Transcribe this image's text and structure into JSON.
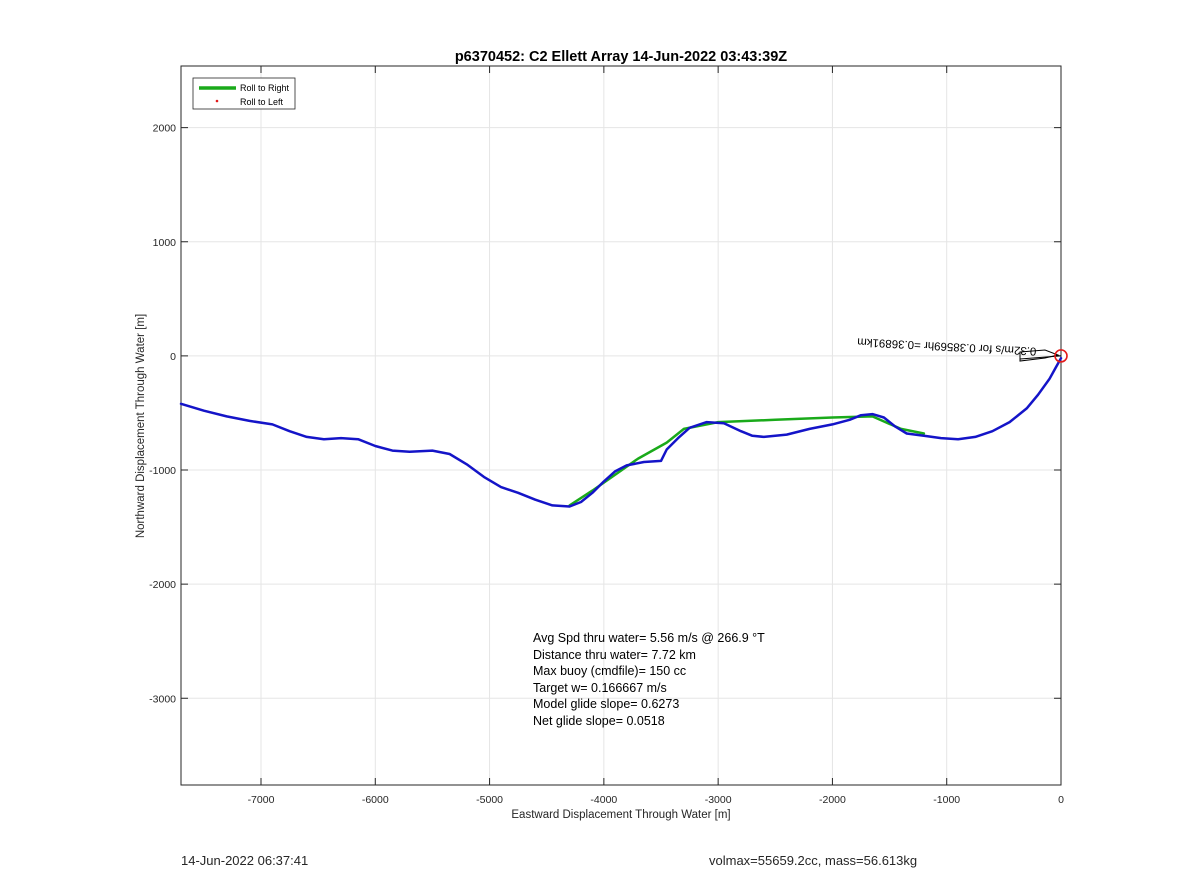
{
  "chart_data": {
    "type": "line",
    "title": "p6370452: C2 Ellett Array 14-Jun-2022 03:43:39Z",
    "xlabel": "Eastward Displacement Through Water [m]",
    "ylabel": "Northward Displacement Through Water [m]",
    "xlim": [
      -7700,
      0
    ],
    "ylim": [
      -3760,
      2540
    ],
    "xticks": [
      -7000,
      -6000,
      -5000,
      -4000,
      -3000,
      -2000,
      -1000,
      0
    ],
    "yticks": [
      -3000,
      -2000,
      -1000,
      0,
      1000,
      2000
    ],
    "grid": true,
    "legend_position": "top-left",
    "series": [
      {
        "name": "Roll to Right",
        "color": "#1aaa1a",
        "style": "line",
        "x": [
          -4300,
          -4100,
          -3900,
          -3700,
          -3450,
          -3300,
          -3000,
          -2500,
          -2000,
          -1650,
          -1400,
          -1200
        ],
        "y": [
          -1310,
          -1180,
          -1040,
          -900,
          -760,
          -640,
          -580,
          -560,
          -540,
          -530,
          -640,
          -680
        ]
      },
      {
        "name": "Roll to Left",
        "color": "#e31a1a",
        "style": "dots",
        "x": [],
        "y": []
      },
      {
        "name": "",
        "color": "#1414c8",
        "style": "line",
        "x": [
          -7700,
          -7500,
          -7300,
          -7100,
          -6900,
          -6750,
          -6600,
          -6450,
          -6300,
          -6150,
          -6000,
          -5850,
          -5700,
          -5500,
          -5350,
          -5200,
          -5050,
          -4900,
          -4750,
          -4600,
          -4450,
          -4300,
          -4200,
          -4100,
          -4000,
          -3900,
          -3800,
          -3650,
          -3500,
          -3450,
          -3350,
          -3250,
          -3100,
          -2950,
          -2800,
          -2700,
          -2600,
          -2400,
          -2200,
          -2000,
          -1850,
          -1750,
          -1650,
          -1550,
          -1450,
          -1350,
          -1200,
          -1050,
          -900,
          -750,
          -600,
          -450,
          -300,
          -200,
          -100,
          -50,
          0
        ],
        "y": [
          -420,
          -480,
          -530,
          -570,
          -600,
          -660,
          -710,
          -730,
          -720,
          -730,
          -790,
          -830,
          -840,
          -830,
          -860,
          -950,
          -1060,
          -1150,
          -1200,
          -1260,
          -1310,
          -1320,
          -1280,
          -1200,
          -1100,
          -1010,
          -960,
          -930,
          -920,
          -820,
          -720,
          -630,
          -580,
          -590,
          -660,
          -700,
          -710,
          -690,
          -640,
          -600,
          -560,
          -520,
          -510,
          -540,
          -620,
          -680,
          -700,
          -720,
          -730,
          -710,
          -660,
          -580,
          -460,
          -340,
          -200,
          -110,
          -20
        ]
      }
    ],
    "annotations": {
      "stats": [
        "Avg Spd thru water=  5.56 m/s @ 266.9 °T",
        "Distance thru water=  7.72 km",
        "Max buoy (cmdfile)= 150 cc",
        "Target w= 0.166667 m/s",
        "Model glide slope= 0.6273",
        "Net glide slope= 0.0518"
      ],
      "vector_label": "0.32m/s for 0.38569hr =0.36891km"
    }
  },
  "footer": {
    "timestamp": "14-Jun-2022 06:37:41",
    "volmax": "volmax=55659.2cc, mass=56.613kg"
  }
}
